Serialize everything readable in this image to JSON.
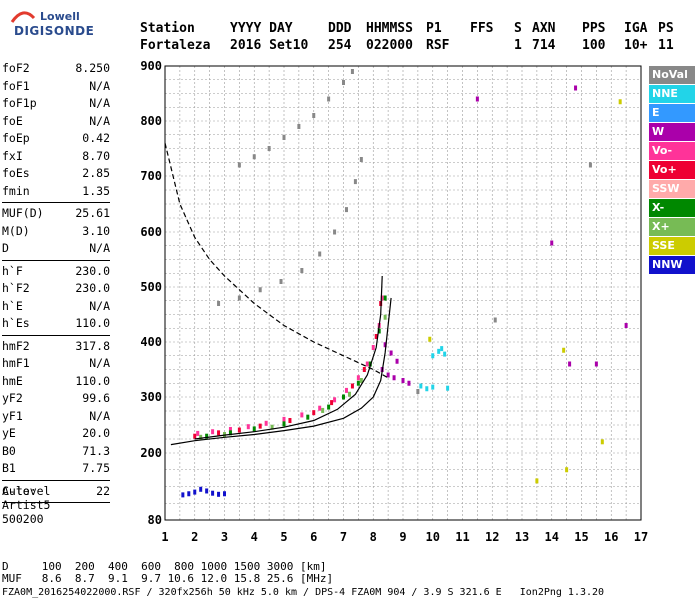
{
  "logo": {
    "line1": "Lowell",
    "line2": "DIGISONDE"
  },
  "header": {
    "columns": [
      {
        "label": "Station",
        "value": "Fortaleza"
      },
      {
        "label": "YYYY DAY",
        "value": "2016 Set10"
      },
      {
        "label": "DDD",
        "value": "254"
      },
      {
        "label": "HHMMSS",
        "value": "022000"
      },
      {
        "label": "P1",
        "value": "RSF"
      },
      {
        "label": "FFS",
        "value": ""
      },
      {
        "label": "S",
        "value": "1"
      },
      {
        "label": "AXN",
        "value": "714"
      },
      {
        "label": "PPS",
        "value": "100"
      },
      {
        "label": "IGA",
        "value": "10+"
      },
      {
        "label": "PS",
        "value": "11"
      }
    ]
  },
  "params": [
    [
      {
        "k": "foF2",
        "v": "8.250"
      },
      {
        "k": "foF1",
        "v": "N/A"
      },
      {
        "k": "foF1p",
        "v": "N/A"
      },
      {
        "k": "foE",
        "v": "N/A"
      },
      {
        "k": "foEp",
        "v": "0.42"
      },
      {
        "k": "fxI",
        "v": "8.70"
      },
      {
        "k": "foEs",
        "v": "2.85"
      },
      {
        "k": "fmin",
        "v": "1.35"
      }
    ],
    [
      {
        "k": "MUF(D)",
        "v": "25.61"
      },
      {
        "k": "M(D)",
        "v": "3.10"
      },
      {
        "k": "D",
        "v": "N/A"
      }
    ],
    [
      {
        "k": "h`F",
        "v": "230.0"
      },
      {
        "k": "h`F2",
        "v": "230.0"
      },
      {
        "k": "h`E",
        "v": "N/A"
      },
      {
        "k": "h`Es",
        "v": "110.0"
      }
    ],
    [
      {
        "k": "hmF2",
        "v": "317.8"
      },
      {
        "k": "hmF1",
        "v": "N/A"
      },
      {
        "k": "hmE",
        "v": "110.0"
      },
      {
        "k": "yF2",
        "v": "99.6"
      },
      {
        "k": "yF1",
        "v": "N/A"
      },
      {
        "k": "yE",
        "v": "20.0"
      },
      {
        "k": "B0",
        "v": "71.3"
      },
      {
        "k": "B1",
        "v": "7.75"
      }
    ],
    [
      {
        "k": "C-level",
        "v": "22"
      }
    ]
  ],
  "auto": {
    "line1": "Auto:",
    "line2": "Artist5",
    "line3": "500200"
  },
  "legend": [
    {
      "label": "NoVal",
      "color": "#888888"
    },
    {
      "label": "NNE",
      "color": "#22d4e8"
    },
    {
      "label": "E",
      "color": "#3399ff"
    },
    {
      "label": "W",
      "color": "#aa00aa"
    },
    {
      "label": "Vo-",
      "color": "#ff3399"
    },
    {
      "label": "Vo+",
      "color": "#ee0033"
    },
    {
      "label": "SSW",
      "color": "#ffaaaa"
    },
    {
      "label": "X-",
      "color": "#008800"
    },
    {
      "label": "X+",
      "color": "#77bb55"
    },
    {
      "label": "SSE",
      "color": "#cccc00"
    },
    {
      "label": "NNW",
      "color": "#1111cc"
    }
  ],
  "dmuf": {
    "d_line": "D     100  200  400  600  800 1000 1500 3000 [km]",
    "muf_line": "MUF   8.6  8.7  9.1  9.7 10.6 12.0 15.8 25.6 [MHz]"
  },
  "footer": "FZA0M_2016254022000.RSF / 320fx256h 50 kHz 5.0 km / DPS-4 FZA0M 904 / 3.9 S 321.6 E   Ion2Png 1.3.20",
  "chart_data": {
    "type": "scatter",
    "x_ticks": [
      1,
      2,
      3,
      4,
      5,
      6,
      7,
      8,
      9,
      10,
      11,
      12,
      13,
      14,
      15,
      16,
      17
    ],
    "y_ticks": [
      80,
      200,
      300,
      400,
      500,
      600,
      700,
      800,
      900
    ],
    "xlim": [
      1,
      17
    ],
    "ylim": [
      80,
      900
    ],
    "grid": true,
    "series": [
      {
        "color": "#ff3399",
        "points": [
          [
            2.1,
            235
          ],
          [
            2.6,
            238
          ],
          [
            3.2,
            242
          ],
          [
            3.8,
            247
          ],
          [
            4.4,
            253
          ],
          [
            5.0,
            260
          ],
          [
            5.6,
            268
          ],
          [
            6.2,
            280
          ],
          [
            6.7,
            295
          ],
          [
            7.1,
            312
          ],
          [
            7.5,
            335
          ],
          [
            7.8,
            360
          ],
          [
            8.0,
            390
          ],
          [
            8.2,
            430
          ],
          [
            8.3,
            480
          ]
        ]
      },
      {
        "color": "#ee0033",
        "points": [
          [
            2.0,
            230
          ],
          [
            2.8,
            236
          ],
          [
            3.5,
            241
          ],
          [
            4.2,
            248
          ],
          [
            5.2,
            258
          ],
          [
            6.0,
            272
          ],
          [
            6.6,
            290
          ],
          [
            7.3,
            320
          ],
          [
            7.7,
            350
          ],
          [
            8.1,
            410
          ],
          [
            8.25,
            470
          ]
        ]
      },
      {
        "color": "#008800",
        "points": [
          [
            2.4,
            230
          ],
          [
            3.2,
            236
          ],
          [
            4.0,
            243
          ],
          [
            5.0,
            252
          ],
          [
            5.8,
            264
          ],
          [
            6.5,
            282
          ],
          [
            7.0,
            300
          ],
          [
            7.5,
            325
          ],
          [
            7.9,
            360
          ],
          [
            8.2,
            420
          ],
          [
            8.4,
            480
          ]
        ]
      },
      {
        "color": "#77bb55",
        "points": [
          [
            2.2,
            228
          ],
          [
            3.0,
            233
          ],
          [
            4.6,
            246
          ],
          [
            6.3,
            276
          ],
          [
            7.2,
            305
          ],
          [
            7.6,
            330
          ],
          [
            8.4,
            445
          ]
        ]
      },
      {
        "color": "#aa00aa",
        "points": [
          [
            8.3,
            350
          ],
          [
            8.5,
            340
          ],
          [
            8.7,
            335
          ],
          [
            9.0,
            330
          ],
          [
            9.2,
            325
          ],
          [
            8.6,
            380
          ],
          [
            8.8,
            365
          ],
          [
            8.4,
            395
          ],
          [
            11.5,
            840
          ],
          [
            14.0,
            580
          ],
          [
            14.6,
            360
          ],
          [
            16.5,
            430
          ],
          [
            14.8,
            860
          ],
          [
            15.5,
            360
          ]
        ]
      },
      {
        "color": "#22d4e8",
        "points": [
          [
            9.6,
            320
          ],
          [
            9.8,
            315
          ],
          [
            10.0,
            318
          ],
          [
            10.2,
            383
          ],
          [
            10.4,
            378
          ],
          [
            10.0,
            375
          ],
          [
            10.5,
            316
          ],
          [
            10.3,
            388
          ]
        ]
      },
      {
        "color": "#1111cc",
        "points": [
          [
            1.6,
            125
          ],
          [
            1.8,
            127
          ],
          [
            2.0,
            130
          ],
          [
            2.2,
            135
          ],
          [
            2.4,
            132
          ],
          [
            2.6,
            128
          ],
          [
            2.8,
            126
          ],
          [
            3.0,
            127
          ]
        ]
      },
      {
        "color": "#cccc00",
        "points": [
          [
            9.9,
            405
          ],
          [
            14.5,
            170
          ],
          [
            14.4,
            385
          ],
          [
            16.3,
            835
          ],
          [
            13.5,
            150
          ],
          [
            15.7,
            220
          ]
        ]
      },
      {
        "color": "#888888",
        "points": [
          [
            3.5,
            720
          ],
          [
            4.0,
            735
          ],
          [
            4.5,
            750
          ],
          [
            5.0,
            770
          ],
          [
            5.5,
            790
          ],
          [
            6.0,
            810
          ],
          [
            6.5,
            840
          ],
          [
            7.0,
            870
          ],
          [
            7.3,
            890
          ],
          [
            2.8,
            470
          ],
          [
            3.5,
            480
          ],
          [
            4.2,
            495
          ],
          [
            4.9,
            510
          ],
          [
            5.6,
            530
          ],
          [
            6.2,
            560
          ],
          [
            6.7,
            600
          ],
          [
            7.1,
            640
          ],
          [
            7.4,
            690
          ],
          [
            7.6,
            730
          ],
          [
            9.5,
            310
          ],
          [
            12.1,
            440
          ],
          [
            15.3,
            720
          ]
        ]
      }
    ],
    "lines": [
      {
        "style": "solid",
        "points": [
          [
            1.2,
            215
          ],
          [
            2.0,
            222
          ],
          [
            3.0,
            228
          ],
          [
            4.0,
            233
          ],
          [
            5.0,
            240
          ],
          [
            6.0,
            248
          ],
          [
            7.0,
            262
          ],
          [
            7.6,
            280
          ],
          [
            8.0,
            300
          ],
          [
            8.25,
            330
          ],
          [
            8.4,
            380
          ],
          [
            8.5,
            430
          ],
          [
            8.6,
            480
          ]
        ]
      },
      {
        "style": "solid",
        "points": [
          [
            2.0,
            225
          ],
          [
            3.0,
            232
          ],
          [
            4.0,
            238
          ],
          [
            5.0,
            246
          ],
          [
            6.0,
            258
          ],
          [
            6.8,
            278
          ],
          [
            7.4,
            305
          ],
          [
            7.8,
            340
          ],
          [
            8.1,
            390
          ],
          [
            8.25,
            450
          ],
          [
            8.3,
            520
          ]
        ]
      },
      {
        "style": "dashed",
        "points": [
          [
            1.0,
            760
          ],
          [
            1.5,
            650
          ],
          [
            2.0,
            590
          ],
          [
            2.5,
            550
          ],
          [
            3.0,
            520
          ],
          [
            4.0,
            470
          ],
          [
            5.0,
            430
          ],
          [
            6.0,
            400
          ],
          [
            7.0,
            375
          ],
          [
            8.0,
            350
          ],
          [
            8.5,
            335
          ]
        ]
      }
    ]
  }
}
